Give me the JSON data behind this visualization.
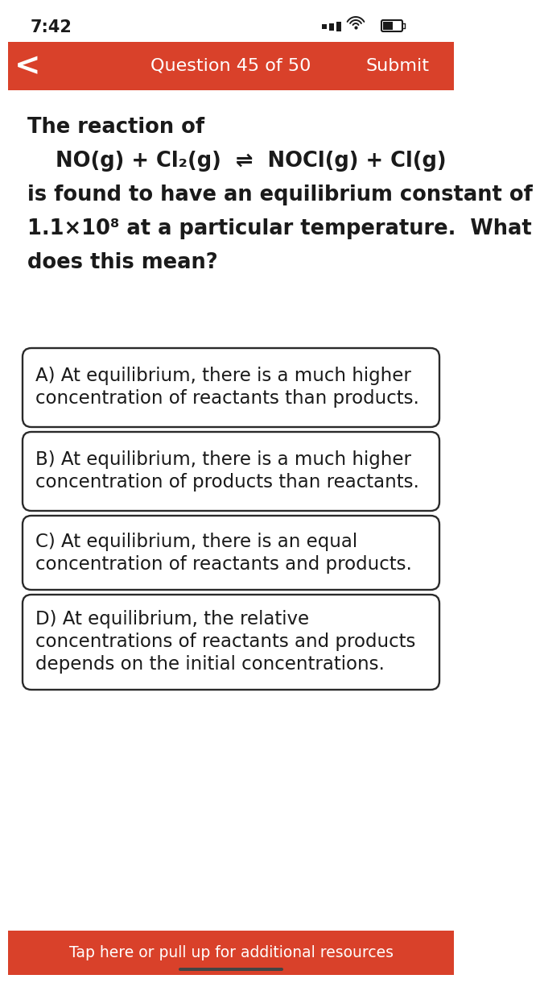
{
  "bg_color": "#ffffff",
  "header_color": "#d9412a",
  "header_text": "Question 45 of 50",
  "header_submit": "Submit",
  "header_back": "<",
  "status_time": "7:42",
  "question_line1": "The reaction of",
  "question_line2": "NO(g) + Cl₂(g)  ⇌  NOCl(g) + Cl(g)",
  "question_line3": "is found to have an equilibrium constant of",
  "question_line4": "1.1×10⁸ at a particular temperature.  What",
  "question_line5": "does this mean?",
  "options": [
    "A) At equilibrium, there is a much higher\nconcentration of reactants than products.",
    "B) At equilibrium, there is a much higher\nconcentration of products than reactants.",
    "C) At equilibrium, there is an equal\nconcentration of reactants and products.",
    "D) At equilibrium, the relative\nconcentrations of reactants and products\ndepends on the initial concentrations."
  ],
  "footer_text": "Tap here or pull up for additional resources",
  "footer_color": "#d9412a",
  "text_color": "#1a1a1a",
  "option_border_color": "#2a2a2a",
  "option_bg_color": "#ffffff"
}
